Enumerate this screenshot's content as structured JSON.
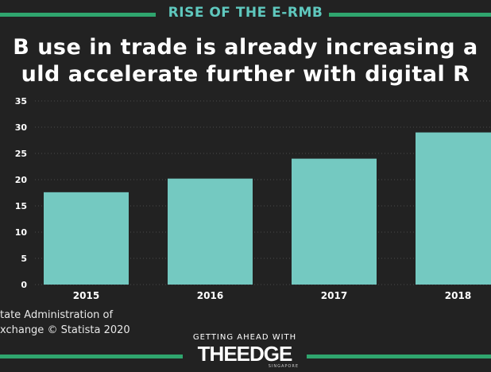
{
  "kicker": "RISE OF THE E-RMB",
  "headline": {
    "line1": "B use in trade is already increasing a",
    "line2": "uld accelerate further with digital R"
  },
  "source": {
    "line1": "tate Administration of",
    "line2": "xchange © Statista 2020"
  },
  "branding": {
    "tagline": "GETTING AHEAD WITH",
    "logo": "THEEDGE",
    "sub": "SINGAPORE"
  },
  "colors": {
    "background": "#222222",
    "bar": "#74c9c1",
    "accent_line": "#2fa56e",
    "kicker": "#5fc8be"
  },
  "chart_data": {
    "type": "bar",
    "categories": [
      "2015",
      "2016",
      "2017",
      "2018"
    ],
    "values": [
      17.6,
      20.2,
      24.0,
      29.0
    ],
    "yticks": [
      0,
      5,
      10,
      15,
      20,
      25,
      30,
      35
    ],
    "ylim": [
      0,
      35
    ],
    "grid": true,
    "xlabel": "",
    "ylabel": "",
    "title": ""
  }
}
